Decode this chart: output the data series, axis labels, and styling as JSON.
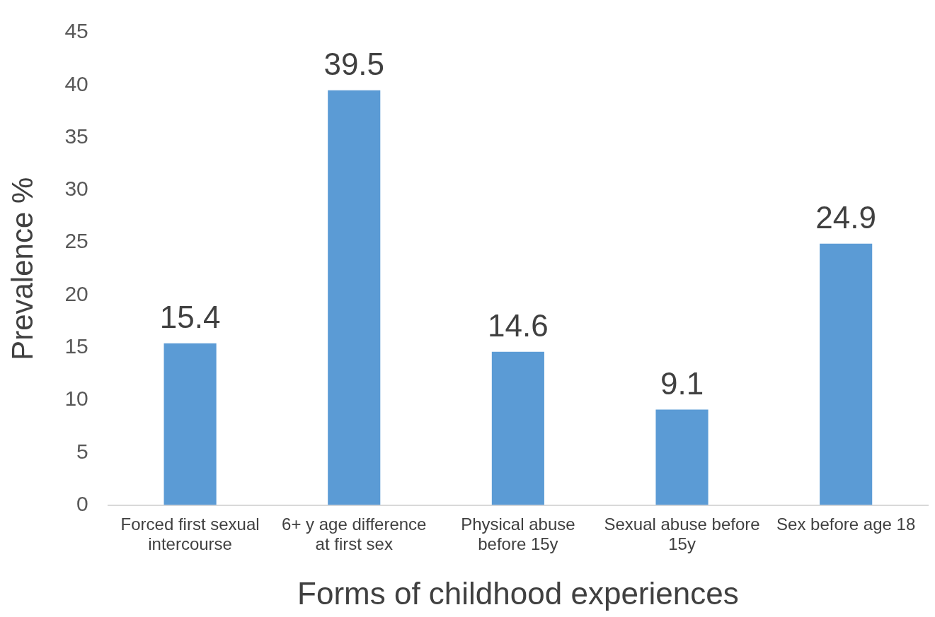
{
  "chart_data": {
    "type": "bar",
    "xlabel": "Forms of childhood experiences",
    "ylabel": "Prevalence %",
    "categories": [
      "Forced first sexual intercourse",
      "6+ y age difference at first sex",
      "Physical abuse before 15y",
      "Sexual abuse before 15y",
      "Sex before age 18"
    ],
    "values": [
      15.4,
      39.5,
      14.6,
      9.1,
      24.9
    ],
    "color": "#5b9bd5",
    "ylim": [
      0,
      45
    ],
    "yticks": [
      0,
      5,
      10,
      15,
      20,
      25,
      30,
      35,
      40,
      45
    ],
    "grid": false,
    "legend": false,
    "data_labels": true
  }
}
